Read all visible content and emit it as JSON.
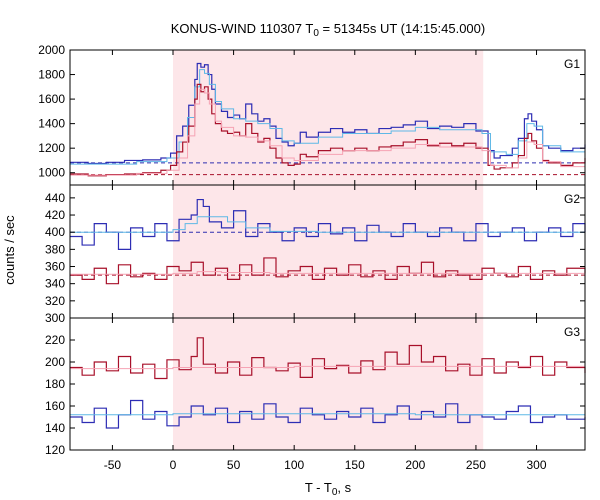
{
  "chart_data": {
    "type": "line",
    "title_main": "KONUS-WIND 110307 T",
    "title_sub": "0",
    "title_rest": " = 51345s UT (14:15:45.000)",
    "xlabel_main": "T - T",
    "xlabel_sub": "0",
    "xlabel_rest": ", s",
    "ylabel": "counts / sec",
    "xlim": [
      -85,
      340
    ],
    "xticks": [
      -50,
      0,
      50,
      100,
      150,
      200,
      250,
      300
    ],
    "xtick_labels": [
      "-50",
      "0",
      "50",
      "100",
      "150",
      "200",
      "250",
      "300"
    ],
    "shaded_interval": [
      0,
      256
    ],
    "colors": {
      "blue": "#2d2db4",
      "lightblue": "#5fb8e6",
      "red": "#a8102a",
      "pink": "#f6a3b4",
      "shade": "#fde6e9",
      "dash_blue": "#2f2fb0",
      "dash_red": "#a8102a"
    },
    "panels": [
      {
        "label": "G1",
        "ylim": [
          900,
          2000
        ],
        "yticks": [
          1000,
          1200,
          1400,
          1600,
          1800,
          2000
        ],
        "ytick_labels": [
          "1000",
          "1200",
          "1400",
          "1600",
          "1800",
          "2000"
        ],
        "background": [
          1080,
          985
        ],
        "series": [
          {
            "color": "blue",
            "t": [
              -85,
              -70,
              -55,
              -40,
              -25,
              -10,
              -2,
              3,
              8,
              13,
              18,
              20,
              23,
              26,
              29,
              32,
              35,
              40,
              45,
              50,
              55,
              60,
              65,
              70,
              75,
              80,
              85,
              90,
              95,
              100,
              105,
              110,
              120,
              130,
              140,
              150,
              160,
              170,
              180,
              190,
              200,
              210,
              220,
              230,
              240,
              250,
              260,
              265,
              270,
              280,
              285,
              290,
              293,
              296,
              300,
              305,
              310,
              320,
              330,
              340
            ],
            "v": [
              1085,
              1075,
              1085,
              1100,
              1105,
              1120,
              1160,
              1300,
              1380,
              1550,
              1760,
              1890,
              1860,
              1880,
              1800,
              1680,
              1560,
              1500,
              1450,
              1470,
              1440,
              1560,
              1480,
              1420,
              1440,
              1380,
              1280,
              1250,
              1220,
              1240,
              1330,
              1290,
              1330,
              1360,
              1330,
              1350,
              1320,
              1360,
              1370,
              1390,
              1420,
              1360,
              1380,
              1370,
              1400,
              1340,
              1180,
              1120,
              1140,
              1200,
              1280,
              1440,
              1480,
              1420,
              1350,
              1220,
              1200,
              1180,
              1200,
              1230
            ]
          },
          {
            "color": "lightblue",
            "t": [
              -85,
              -60,
              -30,
              -5,
              5,
              12,
              18,
              22,
              26,
              30,
              35,
              40,
              50,
              60,
              70,
              80,
              90,
              100,
              120,
              140,
              160,
              180,
              200,
              220,
              240,
              255,
              262,
              275,
              285,
              292,
              298,
              305,
              320,
              340
            ],
            "v": [
              1070,
              1070,
              1090,
              1120,
              1250,
              1450,
              1700,
              1840,
              1810,
              1720,
              1580,
              1520,
              1440,
              1420,
              1400,
              1360,
              1260,
              1240,
              1290,
              1320,
              1320,
              1340,
              1370,
              1350,
              1350,
              1320,
              1170,
              1150,
              1260,
              1400,
              1380,
              1220,
              1170,
              1200
            ]
          },
          {
            "color": "red",
            "t": [
              -85,
              -70,
              -55,
              -40,
              -25,
              -10,
              -2,
              3,
              8,
              13,
              18,
              20,
              23,
              26,
              29,
              32,
              35,
              40,
              45,
              50,
              55,
              60,
              65,
              70,
              75,
              80,
              85,
              90,
              95,
              100,
              105,
              110,
              120,
              130,
              140,
              150,
              160,
              170,
              180,
              190,
              200,
              210,
              220,
              230,
              240,
              250,
              260,
              265,
              270,
              280,
              285,
              290,
              293,
              296,
              300,
              305,
              310,
              320,
              330,
              340
            ],
            "v": [
              990,
              975,
              985,
              990,
              1000,
              1020,
              1060,
              1170,
              1250,
              1380,
              1600,
              1720,
              1660,
              1700,
              1600,
              1480,
              1400,
              1340,
              1320,
              1330,
              1300,
              1400,
              1320,
              1250,
              1280,
              1200,
              1120,
              1080,
              1060,
              1070,
              1150,
              1130,
              1180,
              1200,
              1180,
              1200,
              1180,
              1210,
              1220,
              1250,
              1270,
              1220,
              1240,
              1220,
              1240,
              1200,
              1060,
              1030,
              1040,
              1080,
              1140,
              1280,
              1320,
              1260,
              1200,
              1100,
              1080,
              1060,
              1080,
              1120
            ]
          },
          {
            "color": "pink",
            "t": [
              -85,
              -60,
              -30,
              -5,
              5,
              12,
              18,
              22,
              26,
              30,
              35,
              40,
              50,
              60,
              70,
              80,
              90,
              100,
              120,
              140,
              160,
              180,
              200,
              220,
              240,
              255,
              262,
              275,
              285,
              292,
              298,
              305,
              320,
              340
            ],
            "v": [
              980,
              980,
              995,
              1020,
              1120,
              1300,
              1560,
              1680,
              1650,
              1560,
              1420,
              1370,
              1300,
              1290,
              1260,
              1220,
              1120,
              1100,
              1150,
              1180,
              1180,
              1200,
              1230,
              1210,
              1210,
              1180,
              1060,
              1040,
              1120,
              1250,
              1230,
              1090,
              1050,
              1080
            ]
          }
        ]
      },
      {
        "label": "G2",
        "ylim": [
          300,
          455
        ],
        "yticks": [
          300,
          320,
          340,
          360,
          380,
          400,
          420,
          440
        ],
        "ytick_labels": [
          "300",
          "320",
          "340",
          "360",
          "380",
          "400",
          "420",
          "440"
        ],
        "background": [
          400,
          350
        ],
        "series": [
          {
            "color": "blue",
            "t": [
              -85,
              -75,
              -65,
              -55,
              -45,
              -35,
              -25,
              -15,
              -5,
              5,
              15,
              20,
              25,
              30,
              40,
              50,
              60,
              70,
              80,
              90,
              100,
              110,
              120,
              130,
              140,
              150,
              160,
              170,
              180,
              190,
              200,
              210,
              220,
              230,
              240,
              250,
              260,
              270,
              280,
              290,
              300,
              310,
              320,
              330,
              340
            ],
            "v": [
              395,
              385,
              410,
              400,
              380,
              405,
              395,
              410,
              390,
              415,
              420,
              438,
              430,
              412,
              405,
              425,
              395,
              410,
              400,
              390,
              405,
              395,
              410,
              398,
              405,
              390,
              408,
              400,
              395,
              410,
              400,
              395,
              405,
              400,
              390,
              410,
              395,
              400,
              405,
              390,
              400,
              405,
              395,
              410,
              400
            ]
          },
          {
            "color": "lightblue",
            "t": [
              -85,
              -10,
              0,
              10,
              20,
              30,
              45,
              60,
              80,
              120,
              200,
              260,
              340
            ],
            "v": [
              400,
              400,
              403,
              410,
              418,
              418,
              412,
              405,
              401,
              400,
              400,
              400,
              400
            ]
          },
          {
            "color": "red",
            "t": [
              -85,
              -75,
              -65,
              -55,
              -45,
              -35,
              -25,
              -15,
              -5,
              5,
              15,
              25,
              35,
              45,
              55,
              65,
              75,
              85,
              95,
              105,
              115,
              125,
              135,
              145,
              155,
              165,
              175,
              185,
              195,
              205,
              215,
              225,
              235,
              245,
              255,
              265,
              275,
              285,
              295,
              305,
              315,
              325,
              340
            ],
            "v": [
              350,
              345,
              358,
              340,
              362,
              348,
              352,
              345,
              360,
              355,
              365,
              350,
              358,
              345,
              362,
              350,
              370,
              348,
              355,
              360,
              345,
              358,
              350,
              362,
              348,
              355,
              345,
              360,
              352,
              365,
              348,
              355,
              350,
              345,
              358,
              352,
              348,
              360,
              345,
              355,
              350,
              358,
              352
            ]
          },
          {
            "color": "pink",
            "t": [
              -85,
              0,
              20,
              40,
              80,
              200,
              340
            ],
            "v": [
              351,
              352,
              354,
              353,
              352,
              352,
              352
            ]
          }
        ]
      },
      {
        "label": "G3",
        "ylim": [
          120,
          240
        ],
        "yticks": [
          120,
          140,
          160,
          180,
          200,
          220
        ],
        "ytick_labels": [
          "120",
          "140",
          "160",
          "180",
          "200",
          "220"
        ],
        "background": [],
        "series": [
          {
            "color": "red",
            "t": [
              -85,
              -75,
              -65,
              -55,
              -45,
              -35,
              -25,
              -15,
              -5,
              5,
              15,
              20,
              25,
              35,
              45,
              55,
              65,
              75,
              85,
              95,
              105,
              115,
              125,
              135,
              145,
              155,
              165,
              175,
              185,
              195,
              205,
              215,
              225,
              235,
              245,
              255,
              265,
              275,
              285,
              295,
              305,
              315,
              325,
              340
            ],
            "v": [
              195,
              188,
              200,
              192,
              205,
              190,
              198,
              185,
              202,
              193,
              205,
              222,
              198,
              190,
              200,
              188,
              204,
              195,
              192,
              199,
              186,
              203,
              194,
              197,
              190,
              201,
              193,
              209,
              198,
              215,
              200,
              205,
              192,
              198,
              188,
              203,
              190,
              200,
              195,
              205,
              188,
              200,
              195,
              190
            ]
          },
          {
            "color": "pink",
            "t": [
              -85,
              0,
              100,
              200,
              340
            ],
            "v": [
              194,
              195,
              196,
              196,
              195
            ]
          },
          {
            "color": "blue",
            "t": [
              -85,
              -75,
              -65,
              -55,
              -45,
              -35,
              -25,
              -15,
              -5,
              5,
              15,
              25,
              35,
              45,
              55,
              65,
              75,
              85,
              95,
              105,
              115,
              125,
              135,
              145,
              155,
              165,
              175,
              185,
              195,
              205,
              215,
              225,
              235,
              245,
              255,
              265,
              275,
              285,
              295,
              305,
              315,
              325,
              340
            ],
            "v": [
              150,
              145,
              158,
              140,
              152,
              165,
              148,
              155,
              142,
              150,
              160,
              152,
              158,
              145,
              155,
              148,
              162,
              150,
              145,
              158,
              152,
              148,
              155,
              150,
              158,
              145,
              152,
              160,
              148,
              155,
              150,
              162,
              145,
              152,
              150,
              148,
              155,
              160,
              145,
              150,
              152,
              148,
              150
            ]
          },
          {
            "color": "lightblue",
            "t": [
              -85,
              0,
              100,
              200,
              340
            ],
            "v": [
              152,
              153,
              153,
              152,
              152
            ]
          }
        ]
      }
    ]
  }
}
